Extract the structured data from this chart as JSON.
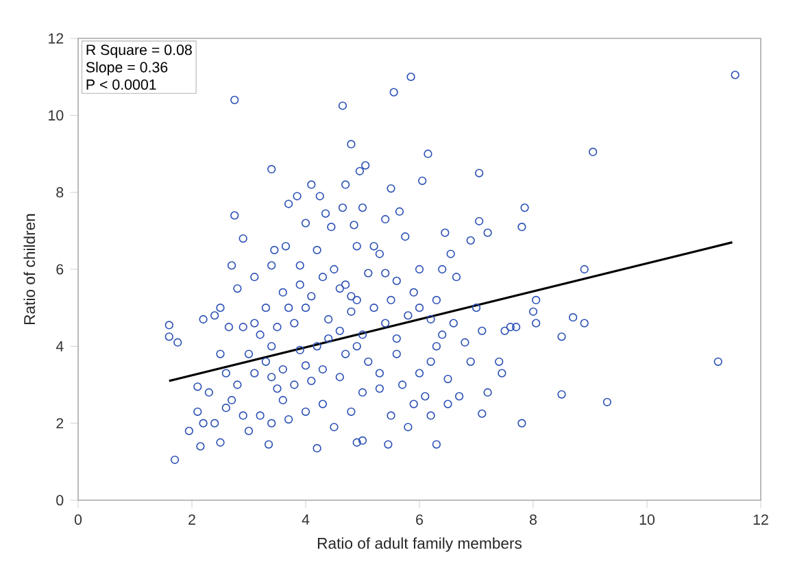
{
  "chart_data": {
    "type": "scatter",
    "xlabel": "Ratio of adult family members",
    "ylabel": "Ratio of children",
    "xlim": [
      0,
      12
    ],
    "ylim": [
      0,
      12
    ],
    "xticks": [
      0,
      2,
      4,
      6,
      8,
      10,
      12
    ],
    "yticks": [
      0,
      2,
      4,
      6,
      8,
      10,
      12
    ],
    "grid": false,
    "annotations": [
      "R Square = 0.08",
      "Slope = 0.36",
      "P < 0.0001"
    ],
    "series": [
      {
        "marker": "circle",
        "color": "#2a4fb5",
        "x": [
          1.7,
          1.6,
          1.6,
          1.75,
          2.75,
          4.65,
          4.8,
          4.95,
          5.05,
          3.4,
          5.55,
          5.85,
          6.15,
          6.05,
          11.55,
          9.05,
          11.25,
          9.3,
          8.5,
          7.8,
          7.1,
          6.3,
          8.5,
          8.9,
          8.7,
          8.05,
          8.0,
          8.05,
          8.9,
          7.8,
          7.85,
          7.05,
          7.05,
          7.2,
          6.45,
          6.9,
          2.75,
          2.9,
          2.7,
          2.8,
          2.15,
          2.5,
          1.95,
          3.35,
          4.2,
          4.9,
          5.45,
          5.0,
          7.6,
          7.5,
          7.7,
          7.4,
          7.45,
          7.2,
          3.0,
          2.1,
          2.1,
          2.2,
          2.4,
          2.6,
          2.5,
          2.2,
          2.4,
          2.5,
          2.65,
          2.9,
          3.1,
          3.1,
          3.4,
          3.45,
          3.65,
          3.7,
          3.85,
          4.0,
          4.1,
          4.25,
          4.35,
          4.45,
          4.65,
          4.7,
          4.85,
          5.0,
          5.2,
          5.4,
          5.5,
          5.65,
          5.3,
          5.75,
          6.0,
          6.4,
          6.55,
          6.65,
          6.3,
          6.0,
          6.4,
          6.2,
          6.5,
          6.1,
          6.5,
          6.2,
          5.8,
          5.5,
          5.3,
          5.1,
          5.0,
          4.8,
          4.6,
          4.4,
          4.2,
          4.0,
          3.8,
          3.6,
          3.4,
          3.3,
          3.2,
          3.5,
          3.7,
          3.9,
          4.1,
          4.3,
          4.5,
          4.7,
          4.9,
          5.2,
          5.4,
          5.6,
          5.8,
          5.9,
          5.6,
          5.4,
          5.1,
          4.9,
          4.2,
          3.9,
          3.3,
          3.0,
          2.8,
          2.7,
          2.9,
          3.2,
          3.4,
          3.7,
          4.0,
          4.3,
          4.5,
          4.8,
          5.0,
          4.6,
          4.3,
          4.1,
          3.9,
          3.6,
          3.5,
          4.4,
          4.7,
          5.3,
          5.7,
          6.0,
          6.3,
          6.6,
          6.8,
          7.0,
          7.1,
          6.9,
          6.7,
          5.9,
          5.6,
          4.9,
          4.6,
          3.8,
          3.4,
          3.1,
          2.6,
          2.3,
          3.6,
          4.0,
          4.8,
          5.5,
          6.2
        ],
        "values": [
          1.05,
          4.55,
          4.25,
          4.1,
          10.4,
          10.25,
          9.25,
          8.55,
          8.7,
          8.6,
          10.6,
          11.0,
          9.0,
          8.3,
          11.05,
          9.05,
          3.6,
          2.55,
          2.75,
          2.0,
          2.25,
          1.45,
          4.25,
          4.6,
          4.75,
          4.6,
          4.9,
          5.2,
          6.0,
          7.1,
          7.6,
          8.5,
          7.25,
          6.95,
          6.95,
          6.75,
          7.4,
          6.8,
          6.1,
          5.5,
          1.4,
          1.5,
          1.8,
          1.45,
          1.35,
          1.5,
          1.45,
          1.55,
          4.5,
          4.4,
          4.5,
          3.6,
          3.3,
          2.8,
          1.8,
          2.95,
          2.3,
          2.0,
          2.0,
          3.3,
          3.8,
          4.7,
          4.8,
          5.0,
          4.5,
          4.5,
          4.6,
          5.8,
          6.1,
          6.5,
          6.6,
          7.7,
          7.9,
          7.2,
          8.2,
          7.9,
          7.45,
          7.1,
          7.6,
          8.2,
          7.15,
          7.6,
          6.6,
          7.3,
          8.1,
          7.5,
          6.4,
          6.85,
          6.0,
          6.0,
          6.4,
          5.8,
          5.2,
          5.0,
          4.3,
          3.6,
          3.15,
          2.7,
          2.5,
          2.2,
          1.9,
          2.2,
          2.9,
          3.6,
          4.3,
          4.9,
          5.5,
          4.7,
          4.0,
          3.5,
          3.0,
          2.6,
          3.2,
          3.6,
          4.3,
          4.5,
          5.0,
          5.6,
          5.3,
          5.8,
          6.0,
          5.6,
          5.2,
          5.0,
          4.6,
          4.2,
          4.8,
          5.4,
          5.7,
          5.9,
          5.9,
          6.6,
          6.5,
          6.1,
          5.0,
          3.8,
          3.0,
          2.6,
          2.2,
          2.2,
          2.0,
          2.1,
          2.3,
          2.5,
          1.9,
          2.3,
          2.8,
          3.2,
          3.4,
          3.1,
          3.9,
          3.4,
          2.9,
          4.2,
          3.8,
          3.3,
          3.0,
          3.3,
          4.0,
          4.6,
          4.1,
          5.0,
          4.4,
          3.6,
          2.7,
          2.5,
          3.8,
          4.0,
          4.4,
          4.6,
          4.0,
          3.3,
          2.4,
          2.8,
          5.4,
          5.0,
          5.3,
          5.2,
          4.7
        ]
      },
      {
        "type": "line",
        "marker": "none",
        "line_style": "solid",
        "color": "#000000",
        "x": [
          1.6,
          11.5
        ],
        "values": [
          3.1,
          6.7
        ]
      }
    ]
  }
}
